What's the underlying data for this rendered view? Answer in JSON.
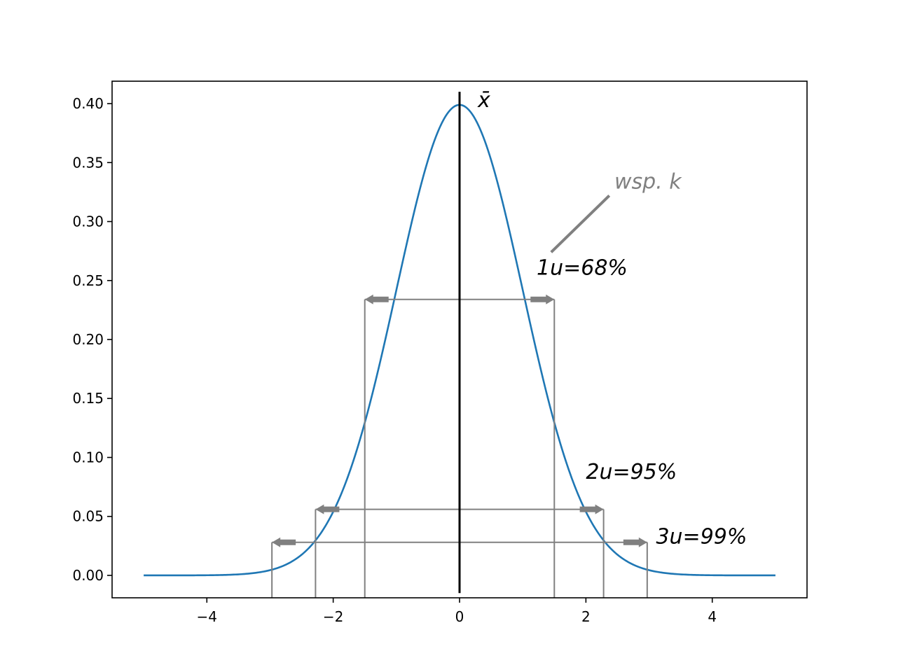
{
  "chart_data": {
    "type": "line",
    "xlim": [
      -5.5,
      5.5
    ],
    "ylim": [
      -0.019,
      0.419
    ],
    "x_ticks": [
      -4,
      -2,
      0,
      2,
      4
    ],
    "x_tick_labels": [
      "−4",
      "−2",
      "0",
      "2",
      "4"
    ],
    "y_ticks": [
      0.0,
      0.05,
      0.1,
      0.15,
      0.2,
      0.25,
      0.3,
      0.35,
      0.4
    ],
    "y_tick_labels": [
      "0.00",
      "0.05",
      "0.10",
      "0.15",
      "0.20",
      "0.25",
      "0.30",
      "0.35",
      "0.40"
    ],
    "grid": false,
    "series": [
      {
        "color": "#1f77b4",
        "function": "standard normal pdf",
        "x_range": [
          -5,
          5
        ]
      }
    ],
    "mean_line": {
      "x": 0,
      "y_range": [
        -0.015,
        0.41
      ],
      "label": "x̄",
      "color": "#000000"
    },
    "intervals": [
      {
        "label": "1u=68%",
        "half_width": 1.5,
        "y": 0.234,
        "label_x": 1.22,
        "label_y": 0.255
      },
      {
        "label": "2u=95%",
        "half_width": 2.28,
        "y": 0.056,
        "label_x": 2.0,
        "label_y": 0.082
      },
      {
        "label": "3u=99%",
        "half_width": 2.97,
        "y": 0.028,
        "label_x": 3.11,
        "label_y": 0.027
      }
    ],
    "interval_color": "#808080",
    "annotation": {
      "label": "wsp. k",
      "label_x": 2.45,
      "label_y": 0.328,
      "pointer_from": [
        2.37,
        0.322
      ],
      "pointer_to": [
        1.45,
        0.274
      ],
      "color": "#808080"
    }
  }
}
